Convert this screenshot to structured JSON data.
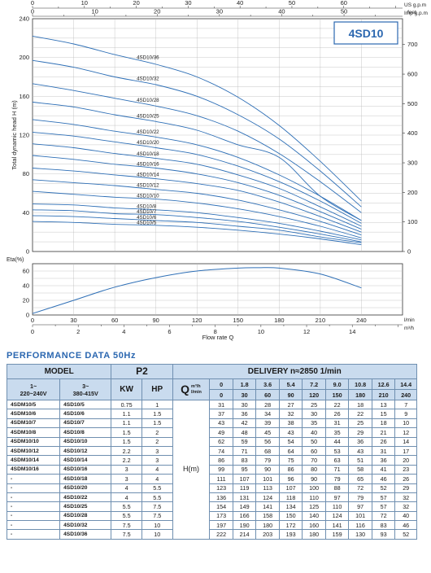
{
  "chart_data": [
    {
      "type": "line",
      "title": "4SD10",
      "ylabel": "Total dynamic head H (m)",
      "ylim": [
        0,
        240
      ],
      "y_ticks": [
        0,
        40,
        80,
        120,
        160,
        200,
        240
      ],
      "y2_label": "feet",
      "y2_ticks": [
        0,
        100,
        200,
        300,
        400,
        500,
        600,
        700
      ],
      "top_axes": [
        {
          "label": "US g.p.m",
          "ticks": [
            0,
            10,
            20,
            30,
            40,
            50,
            60
          ]
        },
        {
          "label": "Imp g.p.m",
          "ticks": [
            0,
            10,
            20,
            30,
            40,
            50
          ]
        }
      ],
      "x": [
        0,
        30,
        60,
        90,
        120,
        150,
        180,
        210,
        240
      ],
      "series": [
        {
          "name": "4SD10/36",
          "values": [
            222,
            214,
            203,
            193,
            180,
            159,
            130,
            93,
            52
          ]
        },
        {
          "name": "4SD10/32",
          "values": [
            197,
            190,
            180,
            172,
            160,
            141,
            116,
            83,
            46
          ]
        },
        {
          "name": "4SD10/28",
          "values": [
            173,
            166,
            158,
            150,
            140,
            124,
            101,
            72,
            40
          ]
        },
        {
          "name": "4SD10/25",
          "values": [
            154,
            149,
            141,
            134,
            125,
            110,
            97,
            57,
            32
          ]
        },
        {
          "name": "4SD10/22",
          "values": [
            136,
            131,
            124,
            118,
            110,
            97,
            79,
            57,
            32
          ]
        },
        {
          "name": "4SD10/20",
          "values": [
            123,
            119,
            113,
            107,
            100,
            88,
            72,
            52,
            29
          ]
        },
        {
          "name": "4SD10/18",
          "values": [
            111,
            107,
            101,
            96,
            90,
            79,
            65,
            46,
            26
          ]
        },
        {
          "name": "4SD10/16",
          "values": [
            99,
            95,
            90,
            86,
            80,
            71,
            58,
            41,
            23
          ]
        },
        {
          "name": "4SD10/14",
          "values": [
            86,
            83,
            79,
            75,
            70,
            63,
            51,
            36,
            20
          ]
        },
        {
          "name": "4SD10/12",
          "values": [
            74,
            71,
            68,
            64,
            60,
            53,
            43,
            31,
            17
          ]
        },
        {
          "name": "4SD10/10",
          "values": [
            62,
            59,
            56,
            54,
            50,
            44,
            36,
            26,
            14
          ]
        },
        {
          "name": "4SD10/8",
          "values": [
            49,
            48,
            45,
            43,
            40,
            35,
            29,
            21,
            12
          ]
        },
        {
          "name": "4SD10/7",
          "values": [
            43,
            42,
            39,
            38,
            35,
            31,
            25,
            18,
            10
          ]
        },
        {
          "name": "4SD10/6",
          "values": [
            37,
            36,
            34,
            32,
            30,
            26,
            22,
            15,
            9
          ]
        },
        {
          "name": "4SD10/5",
          "values": [
            31,
            30,
            28,
            27,
            25,
            22,
            18,
            13,
            7
          ]
        }
      ]
    },
    {
      "type": "line",
      "ylabel": "Eta(%)",
      "ylim": [
        0,
        70
      ],
      "y_ticks": [
        0,
        20,
        40,
        60
      ],
      "x_ticks_lmin": [
        0,
        30,
        60,
        90,
        120,
        150,
        180,
        210,
        240
      ],
      "x_ticks_m3h": [
        0,
        2,
        4,
        6,
        8,
        10,
        12,
        14
      ],
      "x_unit_lmin": "l/min",
      "x_unit_m3h": "m³/h",
      "xlabel": "Flow rate Q",
      "series": [
        {
          "name": "",
          "x": [
            0,
            30,
            60,
            90,
            120,
            150,
            165,
            180,
            210,
            240
          ],
          "values": [
            2,
            20,
            38,
            51,
            60,
            64,
            64.5,
            64,
            56,
            37
          ]
        }
      ]
    }
  ],
  "colors": {
    "curve": "#2e6fb6",
    "accent": "#2b67b0",
    "header_bg": "#c9dbee",
    "grid": "#b9b9b9"
  },
  "performance": {
    "title": "PERFORMANCE  DATA  50Hz",
    "model_label": "MODEL",
    "p2_label": "P2",
    "delivery_label": "DELIVERY   n≈2850 1/min",
    "q_label": "Q",
    "q_unit_m3h": "m³/h",
    "q_unit_lmin": "l/min",
    "col_1ph": "1~\n220~240V",
    "col_3ph": "3~\n380-415V",
    "kw_label": "KW",
    "hp_label": "HP",
    "h_label": "H(m)",
    "q_m3h": [
      "0",
      "1.8",
      "3.6",
      "5.4",
      "7.2",
      "9.0",
      "10.8",
      "12.6",
      "14.4"
    ],
    "q_lmin": [
      "0",
      "30",
      "60",
      "90",
      "120",
      "150",
      "180",
      "210",
      "240"
    ],
    "rows": [
      {
        "m1": "4SDM10/5",
        "m3": "4SD10/5",
        "kw": "0.75",
        "hp": "1",
        "h": [
          "31",
          "30",
          "28",
          "27",
          "25",
          "22",
          "18",
          "13",
          "7"
        ]
      },
      {
        "m1": "4SDM10/6",
        "m3": "4SD10/6",
        "kw": "1.1",
        "hp": "1.5",
        "h": [
          "37",
          "36",
          "34",
          "32",
          "30",
          "26",
          "22",
          "15",
          "9"
        ]
      },
      {
        "m1": "4SDM10/7",
        "m3": "4SD10/7",
        "kw": "1.1",
        "hp": "1.5",
        "h": [
          "43",
          "42",
          "39",
          "38",
          "35",
          "31",
          "25",
          "18",
          "10"
        ]
      },
      {
        "m1": "4SDM10/8",
        "m3": "4SD10/8",
        "kw": "1.5",
        "hp": "2",
        "h": [
          "49",
          "48",
          "45",
          "43",
          "40",
          "35",
          "29",
          "21",
          "12"
        ]
      },
      {
        "m1": "4SDM10/10",
        "m3": "4SD10/10",
        "kw": "1.5",
        "hp": "2",
        "h": [
          "62",
          "59",
          "56",
          "54",
          "50",
          "44",
          "36",
          "26",
          "14"
        ]
      },
      {
        "m1": "4SDM10/12",
        "m3": "4SD10/12",
        "kw": "2.2",
        "hp": "3",
        "h": [
          "74",
          "71",
          "68",
          "64",
          "60",
          "53",
          "43",
          "31",
          "17"
        ]
      },
      {
        "m1": "4SDM10/14",
        "m3": "4SD10/14",
        "kw": "2.2",
        "hp": "3",
        "h": [
          "86",
          "83",
          "79",
          "75",
          "70",
          "63",
          "51",
          "36",
          "20"
        ]
      },
      {
        "m1": "4SDM10/16",
        "m3": "4SD10/16",
        "kw": "3",
        "hp": "4",
        "h": [
          "99",
          "95",
          "90",
          "86",
          "80",
          "71",
          "58",
          "41",
          "23"
        ]
      },
      {
        "m1": "-",
        "m3": "4SD10/18",
        "kw": "3",
        "hp": "4",
        "h": [
          "111",
          "107",
          "101",
          "96",
          "90",
          "79",
          "65",
          "46",
          "26"
        ]
      },
      {
        "m1": "-",
        "m3": "4SD10/20",
        "kw": "4",
        "hp": "5.5",
        "h": [
          "123",
          "119",
          "113",
          "107",
          "100",
          "88",
          "72",
          "52",
          "29"
        ]
      },
      {
        "m1": "-",
        "m3": "4SD10/22",
        "kw": "4",
        "hp": "5.5",
        "h": [
          "136",
          "131",
          "124",
          "118",
          "110",
          "97",
          "79",
          "57",
          "32"
        ]
      },
      {
        "m1": "-",
        "m3": "4SD10/25",
        "kw": "5.5",
        "hp": "7.5",
        "h": [
          "154",
          "149",
          "141",
          "134",
          "125",
          "110",
          "97",
          "57",
          "32"
        ]
      },
      {
        "m1": "-",
        "m3": "4SD10/28",
        "kw": "5.5",
        "hp": "7.5",
        "h": [
          "173",
          "166",
          "158",
          "150",
          "140",
          "124",
          "101",
          "72",
          "40"
        ]
      },
      {
        "m1": "-",
        "m3": "4SD10/32",
        "kw": "7.5",
        "hp": "10",
        "h": [
          "197",
          "190",
          "180",
          "172",
          "160",
          "141",
          "116",
          "83",
          "46"
        ]
      },
      {
        "m1": "-",
        "m3": "4SD10/36",
        "kw": "7.5",
        "hp": "10",
        "h": [
          "222",
          "214",
          "203",
          "193",
          "180",
          "159",
          "130",
          "93",
          "52"
        ]
      }
    ]
  }
}
